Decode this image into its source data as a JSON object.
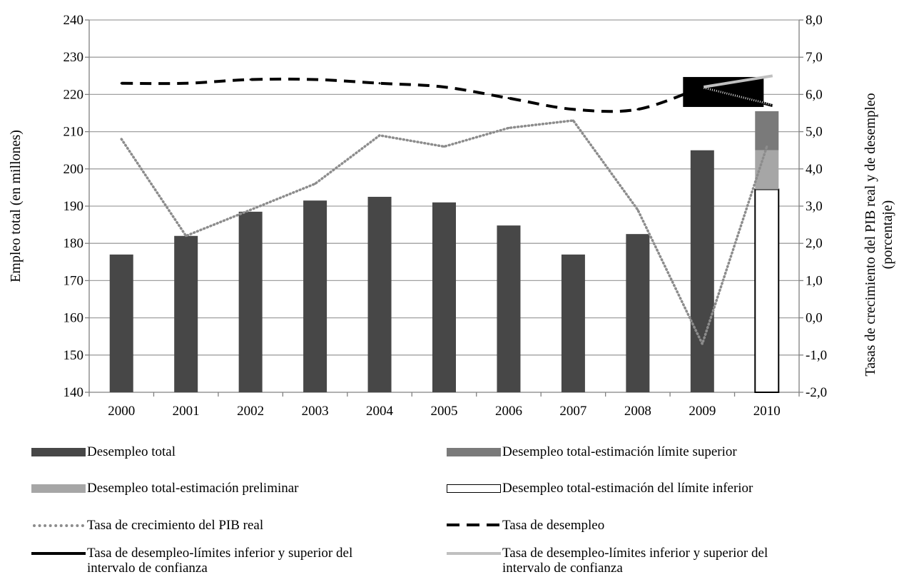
{
  "chart_data": {
    "type": "bar",
    "categories": [
      "2000",
      "2001",
      "2002",
      "2003",
      "2004",
      "2005",
      "2006",
      "2007",
      "2008",
      "2009",
      "2010"
    ],
    "y_left": {
      "label": "Empleo total (en millones)",
      "min": 140,
      "max": 240,
      "step": 10,
      "ticks": [
        "140",
        "150",
        "160",
        "170",
        "180",
        "190",
        "200",
        "210",
        "220",
        "230",
        "240"
      ]
    },
    "y_right": {
      "label": "Tasas de crecimiento del PIB real y de desempleo",
      "label2": "(porcentaje)",
      "min": -2.0,
      "max": 8.0,
      "step": 1.0,
      "ticks": [
        "-2,0",
        "-1,0",
        "0,0",
        "1,0",
        "2,0",
        "3,0",
        "4,0",
        "5,0",
        "6,0",
        "7,0",
        "8,0"
      ]
    },
    "grid": true,
    "series": [
      {
        "name": "Desempleo total",
        "kind": "bar",
        "axis": "left",
        "color": "#474747",
        "values": [
          177.0,
          182.0,
          188.5,
          191.5,
          192.5,
          191.0,
          184.8,
          177.0,
          182.5,
          205.0,
          null
        ]
      },
      {
        "name": "Desempleo total-estimación límite superior",
        "kind": "bar-segment",
        "axis": "left",
        "color": "#7a7a7a",
        "x": "2010",
        "from": 205.0,
        "to": 215.5
      },
      {
        "name": "Desempleo total-estimación preliminar",
        "kind": "bar-segment",
        "axis": "left",
        "color": "#a6a6a6",
        "x": "2010",
        "from": 194.5,
        "to": 205.0
      },
      {
        "name": "Desempleo total-estimación del límite inferior",
        "kind": "bar-segment",
        "axis": "left",
        "color": "#ffffff",
        "x": "2010",
        "from": 140.0,
        "to": 194.5
      },
      {
        "name": "Tasa de crecimiento del PIB real",
        "kind": "line",
        "style": "dotted",
        "axis": "right",
        "color": "#8c8c8c",
        "values": [
          4.8,
          2.2,
          2.9,
          3.6,
          4.9,
          4.6,
          5.1,
          5.3,
          2.9,
          -0.7,
          4.6
        ]
      },
      {
        "name": "Tasa de desempleo",
        "kind": "line",
        "style": "dashed",
        "axis": "right",
        "color": "#000000",
        "values": [
          6.3,
          6.3,
          6.4,
          6.4,
          6.3,
          6.2,
          5.9,
          5.6,
          5.6,
          6.2,
          null
        ]
      },
      {
        "name": "Tasa de desempleo-límites inferior y superior del\nintervalo de confianza",
        "kind": "range-line",
        "axis": "right",
        "color": "#000000",
        "x": [
          "2009",
          "2010"
        ],
        "values": [
          6.2,
          5.7
        ]
      },
      {
        "name": "Tasa de desempleo-límites inferior y superior del\nintervalo de confianza",
        "kind": "range-line",
        "axis": "right",
        "color": "#c0c0c0",
        "x": [
          "2009",
          "2010"
        ],
        "values": [
          6.2,
          6.5
        ]
      }
    ],
    "legend_position": "bottom"
  }
}
